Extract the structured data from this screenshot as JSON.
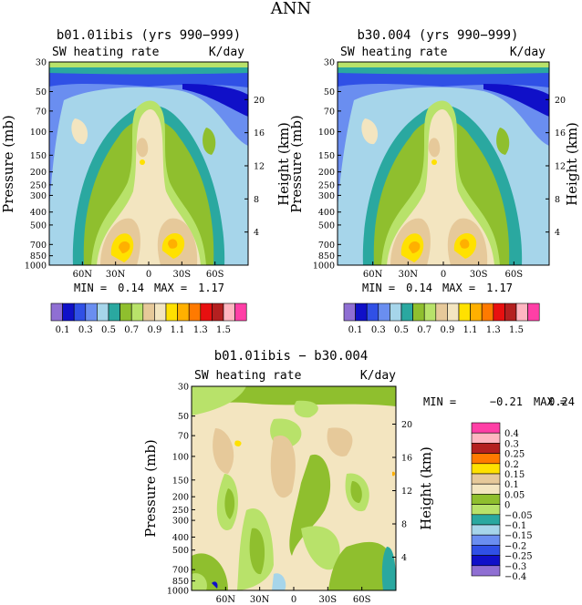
{
  "page_title": "ANN",
  "chart_data": [
    {
      "type": "heatmap",
      "title": "b01.01ibis (yrs 990−999)",
      "subtitle_left": "SW heating rate",
      "subtitle_right": "K/day",
      "ylabel": "Pressure (mb)",
      "ylabel_right": "Height (km)",
      "pressure_ticks": [
        "30",
        "50",
        "70",
        "100",
        "150",
        "200",
        "250",
        "300",
        "400",
        "500",
        "700",
        "850",
        "1000"
      ],
      "height_ticks": [
        "20",
        "16",
        "12",
        "8",
        "4"
      ],
      "lat_ticks": [
        "60N",
        "30N",
        "0",
        "30S",
        "60S"
      ],
      "min_label": "MIN =",
      "min_value": "0.14",
      "max_label": "MAX =",
      "max_value": "1.17",
      "colorbar_labels": [
        "0.1",
        "0.3",
        "0.5",
        "0.7",
        "0.9",
        "1.1",
        "1.3",
        "1.5"
      ],
      "colorbar_levels": [
        0.1,
        0.2,
        0.3,
        0.4,
        0.5,
        0.6,
        0.7,
        0.8,
        0.9,
        1.0,
        1.1,
        1.2,
        1.3,
        1.4,
        1.5
      ]
    },
    {
      "type": "heatmap",
      "title": "b30.004 (yrs 990−999)",
      "subtitle_left": "SW heating rate",
      "subtitle_right": "K/day",
      "ylabel": "Pressure (mb)",
      "ylabel_right": "Height (km)",
      "pressure_ticks": [
        "30",
        "50",
        "70",
        "100",
        "150",
        "200",
        "250",
        "300",
        "400",
        "500",
        "700",
        "850",
        "1000"
      ],
      "height_ticks": [
        "20",
        "16",
        "12",
        "8",
        "4"
      ],
      "lat_ticks": [
        "60N",
        "30N",
        "0",
        "30S",
        "60S"
      ],
      "min_label": "MIN =",
      "min_value": "0.14",
      "max_label": "MAX =",
      "max_value": "1.17",
      "colorbar_labels": [
        "0.1",
        "0.3",
        "0.5",
        "0.7",
        "0.9",
        "1.1",
        "1.3",
        "1.5"
      ],
      "colorbar_levels": [
        0.1,
        0.2,
        0.3,
        0.4,
        0.5,
        0.6,
        0.7,
        0.8,
        0.9,
        1.0,
        1.1,
        1.2,
        1.3,
        1.4,
        1.5
      ]
    },
    {
      "type": "heatmap",
      "title": "b01.01ibis − b30.004",
      "subtitle_left": "SW heating rate",
      "subtitle_right": "K/day",
      "ylabel": "Pressure (mb)",
      "ylabel_right": "Height (km)",
      "pressure_ticks": [
        "30",
        "50",
        "70",
        "100",
        "150",
        "200",
        "250",
        "300",
        "400",
        "500",
        "700",
        "850",
        "1000"
      ],
      "height_ticks": [
        "20",
        "16",
        "12",
        "8",
        "4"
      ],
      "lat_ticks": [
        "60N",
        "30N",
        "0",
        "30S",
        "60S"
      ],
      "min_label": "MIN =",
      "min_value": "−0.21",
      "max_label": "MAX =",
      "max_value": "0.24",
      "colorbar_labels": [
        "0.4",
        "0.3",
        "0.25",
        "0.2",
        "0.15",
        "0.1",
        "0.05",
        "0",
        "−0.05",
        "−0.1",
        "−0.15",
        "−0.2",
        "−0.25",
        "−0.3",
        "−0.4"
      ]
    }
  ],
  "palette": {
    "abs": [
      "#8f6fd3",
      "#1010c8",
      "#3050e6",
      "#6a8ef0",
      "#a6d5ea",
      "#2aa8a0",
      "#8fbf2e",
      "#b8e26a",
      "#e6c99a",
      "#f3e5c0",
      "#ffe100",
      "#ffb000",
      "#ff7a00",
      "#e81010",
      "#b42020",
      "#ffb6c1",
      "#ff3fa6"
    ],
    "diff": [
      "#ff3fa6",
      "#ffb6c1",
      "#b42020",
      "#ff7a00",
      "#ffe100",
      "#e6c99a",
      "#f3e5c0",
      "#8fbf2e",
      "#b8e26a",
      "#2aa8a0",
      "#a6d5ea",
      "#6a8ef0",
      "#3050e6",
      "#1010c8",
      "#8f6fd3"
    ]
  }
}
